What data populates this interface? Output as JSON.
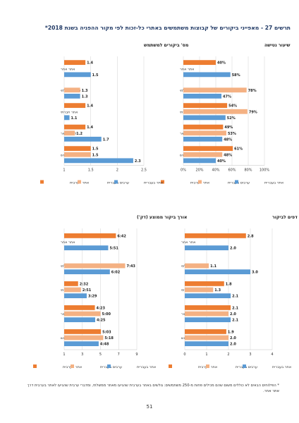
{
  "page": {
    "title": "תרשים 27 - מאפייני ביקורים של קבוצות משתמשים באתרי כל-זכות לפי מקור ההפניה בשנת 2018*",
    "footnote": "* הפילוחים הבאים לא כוללים משום שהם מכילים פחות מ-250 משתמשים: גולשים באתר בערבית שהגיעו מאתר ממשלתי, ומדברי ערבית שהגיעו לאתר בערבית דרך אתר אחר.",
    "page_number": "51"
  },
  "colors": {
    "arabic_site": "#ed7d31",
    "arabic_speakers_hebrew": "#f4b183",
    "hebrew_site": "#5b9bd5"
  },
  "legend": [
    "אתר בערבית",
    "ערבים בעברית",
    "אתר בעברית"
  ],
  "categories": [
    "אתר אחר",
    "אתר ממשלתי",
    "אתר חברתי",
    "קישור ישיר",
    "מנוע חיפוש"
  ],
  "chart_data": [
    {
      "type": "bar",
      "title": "שיעור נטישה",
      "categories": [
        "אתר אחר",
        "אתר ממשלתי",
        "אתר חברתי",
        "קישור ישיר",
        "מנוע חיפוש"
      ],
      "series": [
        {
          "name": "אתר בערבית",
          "values": [
            40,
            null,
            54,
            49,
            61
          ],
          "labels": [
            "40%",
            "",
            "54%",
            "49%",
            "61%"
          ]
        },
        {
          "name": "ערבים בעברית",
          "values": [
            null,
            78,
            79,
            53,
            48
          ],
          "labels": [
            "",
            "78%",
            "79%",
            "53%",
            "48%"
          ]
        },
        {
          "name": "אתר בעברית",
          "values": [
            58,
            47,
            52,
            48,
            40
          ],
          "labels": [
            "58%",
            "47%",
            "52%",
            "48%",
            "40%"
          ]
        }
      ],
      "xlim": [
        0,
        100
      ],
      "ticks": [
        "0%",
        "20%",
        "40%",
        "60%",
        "80%",
        "100%"
      ]
    },
    {
      "type": "bar",
      "title": "מס' ביקורים למשתמש",
      "categories": [
        "אתר אחר",
        "אתר ממשלתי",
        "אתר חברתי",
        "קישור ישיר",
        "מנוע חיפוש"
      ],
      "series": [
        {
          "name": "אתר בערבית",
          "values": [
            1.4,
            null,
            1.4,
            1.4,
            1.5
          ],
          "labels": [
            "1.4",
            "",
            "1.4",
            "1.4",
            "1.5"
          ]
        },
        {
          "name": "ערבים בעברית",
          "values": [
            null,
            1.3,
            null,
            1.2,
            1.5
          ],
          "labels": [
            "",
            "1.3",
            "",
            "1.2",
            "1.5"
          ]
        },
        {
          "name": "אתר בעברית",
          "values": [
            1.5,
            1.3,
            1.1,
            1.7,
            2.3
          ],
          "labels": [
            "1.5",
            "1.3",
            "1.1",
            "1.7",
            "2.3"
          ]
        }
      ],
      "xlim": [
        1,
        2.5
      ],
      "ticks": [
        "1",
        "1.5",
        "2",
        "2.5"
      ]
    },
    {
      "type": "bar",
      "title": "מס' דפים לביקור",
      "categories": [
        "אתר אחר",
        "אתר ממשלתי",
        "אתר חברתי",
        "קישור ישיר",
        "מנוע חיפוש"
      ],
      "series": [
        {
          "name": "אתר בערבית",
          "values": [
            2.8,
            null,
            1.8,
            2.1,
            1.9
          ],
          "labels": [
            "2.8",
            "",
            "1.8",
            "2.1",
            "1.9"
          ]
        },
        {
          "name": "ערבים בעברית",
          "values": [
            null,
            1.1,
            1.3,
            2.0,
            2.0
          ],
          "labels": [
            "",
            "1.1",
            "1.3",
            "2.0",
            "2.0"
          ]
        },
        {
          "name": "אתר בעברית",
          "values": [
            2.0,
            3.0,
            2.1,
            2.1,
            2.0
          ],
          "labels": [
            "2.0",
            "3.0",
            "2.1",
            "2.1",
            "2.0"
          ]
        }
      ],
      "xlim": [
        0,
        4
      ],
      "ticks": [
        "0",
        "1",
        "2",
        "3",
        "4"
      ]
    },
    {
      "type": "bar",
      "title": "אורך ביקור ממוצע (דק')",
      "categories": [
        "אתר אחר",
        "אתר ממשלתי",
        "אתר חברתי",
        "קישור ישיר",
        "מנוע חיפוש"
      ],
      "series": [
        {
          "name": "אתר בערבית",
          "values": [
            6.7,
            null,
            2.533,
            4.383,
            5.05
          ],
          "labels": [
            "6:42",
            "",
            "2:32",
            "4:23",
            "5:03"
          ]
        },
        {
          "name": "ערבים בעברית",
          "values": [
            null,
            7.717,
            2.85,
            5.0,
            5.3
          ],
          "labels": [
            "",
            "7:43",
            "2:51",
            "5:00",
            "5:18"
          ]
        },
        {
          "name": "אתר בעברית",
          "values": [
            5.85,
            6.033,
            3.483,
            4.417,
            4.8
          ],
          "labels": [
            "5:51",
            "6:02",
            "3:29",
            "4:25",
            "4:48"
          ]
        }
      ],
      "xlim": [
        1,
        9
      ],
      "ticks": [
        "1",
        "3",
        "5",
        "7",
        "9"
      ]
    }
  ]
}
